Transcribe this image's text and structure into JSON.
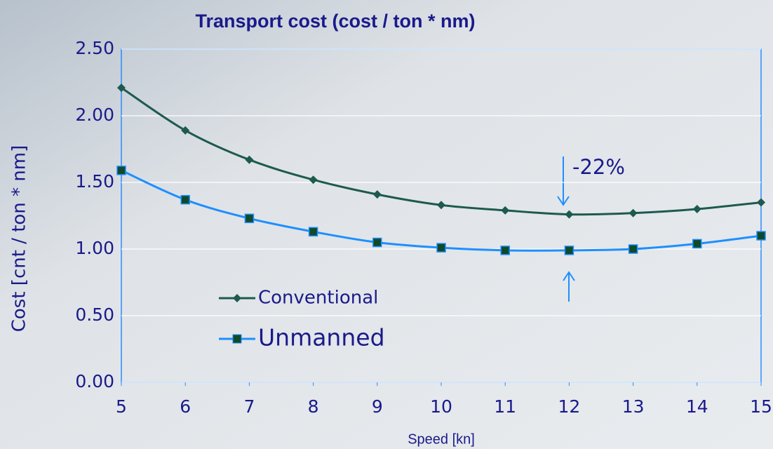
{
  "chart_data": {
    "type": "line",
    "title": "Transport cost (cost / ton * nm)",
    "x_label": "Speed [kn]",
    "y_label": "Cost [cnt / ton * nm]",
    "annotation": "-22%",
    "x": [
      5,
      6,
      7,
      8,
      9,
      10,
      11,
      12,
      13,
      14,
      15
    ],
    "xlim": [
      5,
      15
    ],
    "xticks": [
      5,
      6,
      7,
      8,
      9,
      10,
      11,
      12,
      13,
      14,
      15
    ],
    "ylim": [
      0,
      2.5
    ],
    "yticks": [
      {
        "value": 0,
        "label": "0.00"
      },
      {
        "value": 0.5,
        "label": "0.50"
      },
      {
        "value": 1,
        "label": "1.00"
      },
      {
        "value": 1.5,
        "label": "1.50"
      },
      {
        "value": 2,
        "label": "2.00"
      },
      {
        "value": 2.5,
        "label": "2.50"
      }
    ],
    "grid": true,
    "series": [
      {
        "name": "Conventional",
        "color": "#1d5a4f",
        "marker": "diamond",
        "values": [
          2.21,
          1.89,
          1.67,
          1.52,
          1.41,
          1.33,
          1.29,
          1.26,
          1.27,
          1.3,
          1.35
        ]
      },
      {
        "name": "Unmanned",
        "color": "#1e8fff",
        "marker": "square",
        "values": [
          1.59,
          1.37,
          1.23,
          1.13,
          1.05,
          1.01,
          0.99,
          0.99,
          1.0,
          1.04,
          1.1
        ]
      }
    ]
  }
}
